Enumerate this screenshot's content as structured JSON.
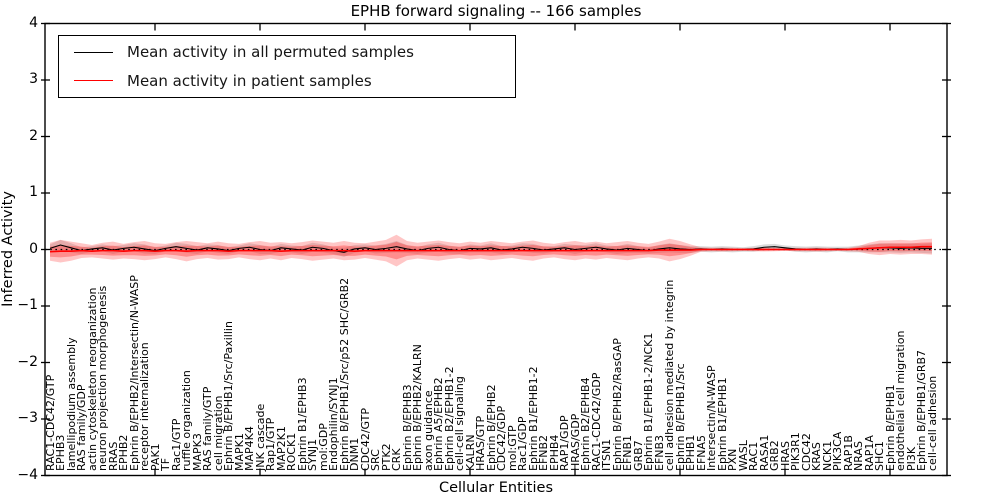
{
  "chart_data": {
    "type": "line",
    "title": "EPHB forward signaling -- 166 samples",
    "sample_count": 166,
    "xlabel": "Cellular Entities",
    "ylabel": "Inferred Activity",
    "ylim": [
      -4,
      4
    ],
    "ytick_values": [
      4,
      3,
      2,
      1,
      0,
      -1,
      -2,
      -3,
      -4
    ],
    "ytick_labels": [
      "4",
      "3",
      "2",
      "1",
      "0",
      "−1",
      "−2",
      "−3",
      "−4"
    ],
    "xtick_category_interval": 10,
    "grid": false,
    "legend_position": "upper left",
    "zero_line": {
      "style": "dotted",
      "color": "#000000",
      "value": 0
    },
    "colors": {
      "permuted_line": "#000000",
      "patient_line": "#ff0000",
      "patient_band_outer": "rgba(255,50,50,0.28)",
      "patient_band_inner": "rgba(255,50,50,0.38)",
      "permuted_band": "rgba(110,110,110,0.25)"
    },
    "categories": [
      "RAC1-CDC42/GTP",
      "EPHB3",
      "lamellipodium assembly",
      "RAS family/GDP",
      "actin cytoskeleton reorganization",
      "neuron projection morphogenesis",
      "RRAS",
      "EPHB2",
      "Ephrin B/EPHB2/Intersectin/N-WASP",
      "receptor internalization",
      "PAK1",
      "TF",
      "Rac1/GTP",
      "ruffle organization",
      "MAPK3",
      "RAS family/GTP",
      "cell migration",
      "Ephrin B/EPHB1/Src/Paxillin",
      "MAPK1",
      "MAP4K4",
      "JNK cascade",
      "Rap1/GTP",
      "MAP2K1",
      "ROCK1",
      "Ephrin B1/EPHB3",
      "SYNJ1",
      "mol:GDP",
      "Endophilin/SYNJ1",
      "Ephrin B/EPHB1/Src/p52 SHC/GRB2",
      "DNM1",
      "CDC42/GTP",
      "SRC",
      "PTK2",
      "CRK",
      "Ephrin B/EPHB3",
      "Ephrin B/EPHB2/KALRN",
      "axon guidance",
      "Ephrin A5/EPHB2",
      "Ephrin B2/EPHB1-2",
      "cell-cell signaling",
      "KALRN",
      "HRAS/GTP",
      "Ephrin B/EPHB2",
      "CDC42/GDP",
      "mol:GTP",
      "Rac1/GDP",
      "Ephrin B1/EPHB1-2",
      "EFNB2",
      "EPHB4",
      "RAP1/GDP",
      "HRAS/GDP",
      "Ephrin B2/EPHB4",
      "RAC1-CDC42/GDP",
      "ITSN1",
      "Ephrin B/EPHB2/RasGAP",
      "EFNB1",
      "GRB7",
      "Ephrin B1/EPHB1-2/NCK1",
      "EFNB3",
      "cell adhesion mediated by integrin",
      "Ephrin B/EPHB1/Src",
      "EPHB1",
      "EFNA5",
      "Intersectin/N-WASP",
      "Ephrin B1/EPHB1",
      "PXN",
      "WASL",
      "RAC1",
      "RASA1",
      "GRB2",
      "HRAS",
      "PIK3R1",
      "CDC42",
      "KRAS",
      "NCK1",
      "PIK3CA",
      "RAP1B",
      "NRAS",
      "RAP1A",
      "SHC1",
      "Ephrin B/EPHB1",
      "endothelial cell migration",
      "PI3K",
      "Ephrin B/EPHB1/GRB7",
      "cell-cell adhesion"
    ],
    "series": [
      {
        "name": "Mean activity in all permuted samples",
        "color": "#000000",
        "values": [
          0.02,
          0.08,
          0.03,
          -0.02,
          0.01,
          0.03,
          -0.01,
          0.02,
          0.04,
          0.01,
          -0.02,
          0.02,
          0.05,
          0.02,
          -0.01,
          0.03,
          0.01,
          -0.02,
          0.02,
          0.04,
          0.0,
          -0.02,
          0.03,
          0.01,
          -0.01,
          0.04,
          0.02,
          -0.02,
          -0.05,
          0.01,
          0.03,
          0.0,
          0.02,
          0.05,
          0.01,
          -0.02,
          0.02,
          0.04,
          0.0,
          -0.02,
          0.02,
          0.01,
          0.03,
          -0.01,
          0.01,
          0.04,
          0.02,
          -0.01,
          0.01,
          0.03,
          0.0,
          0.02,
          0.04,
          0.01,
          -0.01,
          0.02,
          0.0,
          -0.02,
          0.01,
          0.03,
          0.01,
          0.0,
          0.01,
          0.0,
          0.01,
          0.0,
          0.0,
          0.01,
          0.04,
          0.05,
          0.03,
          0.01,
          0.0,
          0.01,
          0.0,
          0.01,
          0.0,
          0.01,
          0.02,
          0.03,
          0.03,
          0.02,
          0.03,
          0.02,
          0.02
        ]
      },
      {
        "name": "Mean activity in patient samples",
        "color": "#ff0000",
        "values": [
          -0.04,
          -0.03,
          -0.03,
          -0.02,
          -0.03,
          -0.02,
          -0.02,
          -0.03,
          -0.02,
          -0.02,
          -0.03,
          -0.02,
          -0.02,
          -0.03,
          -0.02,
          -0.02,
          -0.02,
          -0.03,
          -0.02,
          -0.02,
          -0.02,
          -0.02,
          -0.03,
          -0.02,
          -0.02,
          -0.02,
          -0.02,
          -0.02,
          -0.02,
          -0.03,
          -0.02,
          -0.02,
          -0.02,
          -0.02,
          -0.02,
          -0.02,
          -0.02,
          -0.02,
          -0.02,
          -0.02,
          -0.02,
          -0.02,
          -0.02,
          -0.02,
          -0.02,
          -0.02,
          -0.02,
          -0.02,
          -0.02,
          -0.02,
          -0.02,
          -0.02,
          -0.02,
          -0.02,
          -0.02,
          -0.02,
          -0.02,
          -0.02,
          -0.01,
          -0.01,
          -0.01,
          -0.01,
          0.0,
          0.0,
          0.0,
          0.0,
          0.0,
          0.0,
          0.0,
          0.0,
          0.0,
          0.0,
          0.0,
          0.0,
          0.0,
          0.0,
          0.0,
          0.01,
          0.02,
          0.03,
          0.04,
          0.04,
          0.04,
          0.05,
          0.05
        ]
      }
    ],
    "bands": {
      "patient_outer_halfwidth": [
        0.16,
        0.2,
        0.17,
        0.13,
        0.11,
        0.14,
        0.16,
        0.13,
        0.15,
        0.17,
        0.14,
        0.12,
        0.15,
        0.18,
        0.15,
        0.13,
        0.16,
        0.14,
        0.12,
        0.15,
        0.17,
        0.14,
        0.16,
        0.13,
        0.15,
        0.18,
        0.16,
        0.14,
        0.17,
        0.15,
        0.13,
        0.16,
        0.19,
        0.28,
        0.17,
        0.14,
        0.16,
        0.18,
        0.15,
        0.13,
        0.16,
        0.14,
        0.17,
        0.15,
        0.13,
        0.16,
        0.18,
        0.14,
        0.12,
        0.15,
        0.17,
        0.14,
        0.16,
        0.13,
        0.15,
        0.17,
        0.14,
        0.12,
        0.15,
        0.2,
        0.16,
        0.1,
        0.04,
        0.03,
        0.035,
        0.03,
        0.025,
        0.03,
        0.035,
        0.03,
        0.025,
        0.03,
        0.03,
        0.035,
        0.03,
        0.025,
        0.03,
        0.05,
        0.1,
        0.13,
        0.12,
        0.13,
        0.12,
        0.13,
        0.14
      ],
      "patient_inner_factor": 0.55,
      "permuted_halfwidth": [
        0.07,
        0.09,
        0.08,
        0.06,
        0.05,
        0.06,
        0.07,
        0.06,
        0.07,
        0.08,
        0.06,
        0.05,
        0.07,
        0.08,
        0.07,
        0.06,
        0.07,
        0.06,
        0.05,
        0.07,
        0.08,
        0.06,
        0.07,
        0.06,
        0.07,
        0.08,
        0.07,
        0.06,
        0.08,
        0.07,
        0.06,
        0.07,
        0.08,
        0.1,
        0.07,
        0.06,
        0.07,
        0.08,
        0.07,
        0.06,
        0.07,
        0.06,
        0.08,
        0.07,
        0.06,
        0.07,
        0.08,
        0.06,
        0.05,
        0.07,
        0.08,
        0.06,
        0.07,
        0.06,
        0.07,
        0.08,
        0.06,
        0.05,
        0.07,
        0.08,
        0.07,
        0.06,
        0.05,
        0.05,
        0.05,
        0.05,
        0.04,
        0.05,
        0.05,
        0.05,
        0.04,
        0.05,
        0.05,
        0.05,
        0.05,
        0.04,
        0.05,
        0.06,
        0.07,
        0.08,
        0.08,
        0.08,
        0.08,
        0.08,
        0.09
      ]
    }
  }
}
